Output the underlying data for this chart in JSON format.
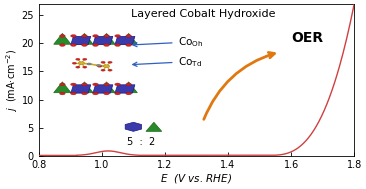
{
  "title": "Layered Cobalt Hydroxide",
  "xlabel": "$E$  (V vs. RHE)",
  "ylabel": "$j$  (mA·cm$^{-2}$)",
  "xlim": [
    0.8,
    1.8
  ],
  "ylim": [
    0,
    27
  ],
  "xticks": [
    0.8,
    1.0,
    1.2,
    1.4,
    1.6,
    1.8
  ],
  "yticks": [
    0,
    5,
    10,
    15,
    20,
    25
  ],
  "curve_color": "#d04040",
  "oer_arrow_color": "#e07810",
  "oer_text": "OER",
  "blue_oct_color": "#3a3aaa",
  "blue_oct_edge": "#1a1a88",
  "green_tet_color": "#2a8a2a",
  "green_tet_edge": "#1a6a1a",
  "red_dot_color": "#cc2222",
  "mol_bond_color": "#c8a830",
  "mol_s_color": "#d4b030",
  "mol_c_color": "#888888",
  "background_color": "#ffffff"
}
